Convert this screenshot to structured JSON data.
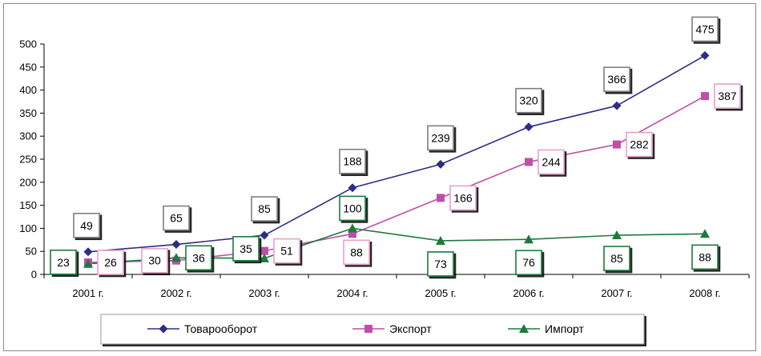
{
  "chart_data": {
    "type": "line",
    "categories": [
      "2001 г.",
      "2002 г.",
      "2003 г.",
      "2004 г.",
      "2005 г.",
      "2006 г.",
      "2007 г.",
      "2008 г."
    ],
    "ylim": [
      0,
      500
    ],
    "yticks": [
      0,
      50,
      100,
      150,
      200,
      250,
      300,
      350,
      400,
      450,
      500
    ],
    "grid": false,
    "legend_position": "bottom",
    "series": [
      {
        "name": "Товарооборот",
        "color": "#2e2e86",
        "marker": "diamond",
        "label_border": "#7f7f7f",
        "values": [
          49,
          65,
          85,
          188,
          239,
          320,
          366,
          475
        ]
      },
      {
        "name": "Экспорт",
        "color": "#c04fa8",
        "marker": "square",
        "label_border": "#e8a0c8",
        "values": [
          26,
          30,
          51,
          88,
          166,
          244,
          282,
          387
        ]
      },
      {
        "name": "Импорт",
        "color": "#1e7a3a",
        "marker": "triangle",
        "label_border": "#1e7a3a",
        "values": [
          23,
          36,
          35,
          100,
          73,
          76,
          85,
          88
        ]
      }
    ]
  }
}
